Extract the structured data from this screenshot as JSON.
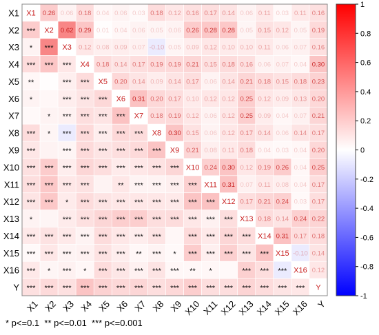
{
  "chart_data": {
    "type": "heatmap",
    "variables": [
      "X1",
      "X2",
      "X3",
      "X4",
      "X5",
      "X6",
      "X7",
      "X8",
      "X9",
      "X10",
      "X11",
      "X12",
      "X13",
      "X14",
      "X15",
      "X16",
      "Y"
    ],
    "upper_values": [
      [
        null,
        "0.26",
        "0.06",
        "0.18",
        "0.04",
        "0.06",
        "0.03",
        "0.18",
        "0.12",
        "0.16",
        "0.17",
        "0.14",
        "0.06",
        "0.11",
        "0.03",
        "0.11",
        "0.16"
      ],
      [
        null,
        null,
        "0.62",
        "0.29",
        "0.01",
        "0.04",
        "0.06",
        "0.05",
        "0.06",
        "0.26",
        "0.28",
        "0.28",
        "0.05",
        "0.15",
        "0.12",
        "0.05",
        "0.19"
      ],
      [
        null,
        null,
        null,
        "0.12",
        "0.08",
        "0.09",
        "0.07",
        "-0.10",
        "0.05",
        "0.09",
        "0.12",
        "0.10",
        "0.10",
        "0.11",
        "0.06",
        "0.07",
        "0.16"
      ],
      [
        null,
        null,
        null,
        null,
        "0.18",
        "0.14",
        "0.17",
        "0.19",
        "0.19",
        "0.21",
        "0.15",
        "0.18",
        "0.16",
        "0.06",
        "0.07",
        "0.04",
        "0.30"
      ],
      [
        null,
        null,
        null,
        null,
        null,
        "0.20",
        "0.14",
        "0.09",
        "0.14",
        "0.17",
        "0.06",
        "0.14",
        "0.21",
        "0.18",
        "0.15",
        "0.18",
        "0.23"
      ],
      [
        null,
        null,
        null,
        null,
        null,
        null,
        "0.31",
        "0.20",
        "0.17",
        "0.10",
        "0.12",
        "0.12",
        "0.25",
        "0.12",
        "0.09",
        "0.13",
        "0.20"
      ],
      [
        null,
        null,
        null,
        null,
        null,
        null,
        null,
        "0.18",
        "0.19",
        "0.12",
        "0.06",
        "0.12",
        "0.25",
        "0.09",
        "0.04",
        "0.07",
        "0.21"
      ],
      [
        null,
        null,
        null,
        null,
        null,
        null,
        null,
        null,
        "0.30",
        "0.15",
        "0.06",
        "0.12",
        "0.17",
        "0.14",
        "0.06",
        "0.14",
        "0.17"
      ],
      [
        null,
        null,
        null,
        null,
        null,
        null,
        null,
        null,
        null,
        "0.21",
        "0.08",
        "0.11",
        "0.18",
        "0.04",
        "0.03",
        "0.04",
        "0.20"
      ],
      [
        null,
        null,
        null,
        null,
        null,
        null,
        null,
        null,
        null,
        null,
        "0.24",
        "0.30",
        "0.12",
        "0.19",
        "0.26",
        "0.04",
        "0.25"
      ],
      [
        null,
        null,
        null,
        null,
        null,
        null,
        null,
        null,
        null,
        null,
        null,
        "0.31",
        "0.07",
        "0.11",
        "0.08",
        "0.04",
        "0.17"
      ],
      [
        null,
        null,
        null,
        null,
        null,
        null,
        null,
        null,
        null,
        null,
        null,
        null,
        "0.17",
        "0.21",
        "0.24",
        "0.03",
        "0.17"
      ],
      [
        null,
        null,
        null,
        null,
        null,
        null,
        null,
        null,
        null,
        null,
        null,
        null,
        null,
        "0.18",
        "0.14",
        "0.24",
        "0.22"
      ],
      [
        null,
        null,
        null,
        null,
        null,
        null,
        null,
        null,
        null,
        null,
        null,
        null,
        null,
        null,
        "0.31",
        "0.17",
        "0.18"
      ],
      [
        null,
        null,
        null,
        null,
        null,
        null,
        null,
        null,
        null,
        null,
        null,
        null,
        null,
        null,
        null,
        "-0.10",
        "0.14"
      ],
      [
        null,
        null,
        null,
        null,
        null,
        null,
        null,
        null,
        null,
        null,
        null,
        null,
        null,
        null,
        null,
        null,
        "0.12"
      ],
      [
        null,
        null,
        null,
        null,
        null,
        null,
        null,
        null,
        null,
        null,
        null,
        null,
        null,
        null,
        null,
        null,
        null
      ]
    ],
    "lower_stars": [
      [],
      [
        "***"
      ],
      [
        "*",
        "***"
      ],
      [
        "***",
        "***",
        "***"
      ],
      [
        "**",
        "",
        "***",
        "***"
      ],
      [
        "*",
        "",
        "***",
        "***",
        "***"
      ],
      [
        "",
        "*",
        "***",
        "***",
        "***",
        "***"
      ],
      [
        "***",
        "*",
        "***",
        "***",
        "***",
        "***",
        "***"
      ],
      [
        "***",
        "",
        "***",
        "***",
        "***",
        "***",
        "***",
        "***"
      ],
      [
        "***",
        "***",
        "***",
        "***",
        "***",
        "***",
        "***",
        "***",
        "***"
      ],
      [
        "***",
        "***",
        "***",
        "***",
        "",
        "**",
        "***",
        "***",
        "***",
        "***"
      ],
      [
        "***",
        "***",
        "*",
        "***",
        "***",
        "***",
        "***",
        "***",
        "***",
        "***",
        "***"
      ],
      [
        "*",
        "",
        "***",
        "***",
        "***",
        "***",
        "***",
        "***",
        "***",
        "***",
        "***",
        "***"
      ],
      [
        "***",
        "***",
        "***",
        "***",
        "***",
        "***",
        "***",
        "***",
        "",
        "***",
        "***",
        "***",
        "***"
      ],
      [
        "***",
        "***",
        "***",
        "***",
        "***",
        "***",
        "**",
        "***",
        "*",
        "***",
        "***",
        "***",
        "***",
        "***"
      ],
      [
        "***",
        "*",
        "***",
        "*",
        "***",
        "***",
        "***",
        "***",
        "***",
        "**",
        "*",
        "",
        "***",
        "***",
        "***"
      ],
      [
        "***",
        "***",
        "***",
        "***",
        "***",
        "***",
        "***",
        "***",
        "***",
        "***",
        "***",
        "***",
        "***",
        "***",
        "***",
        "***"
      ]
    ],
    "colorbar": {
      "range": [
        -1,
        1
      ],
      "ticks": [
        "1",
        "0.8",
        "0.6",
        "0.4",
        "0.2",
        "0",
        "-0.2",
        "-0.4",
        "-0.6",
        "-0.8",
        "-1"
      ]
    },
    "colors": {
      "positive": "#f22a2a",
      "negative": "#2a2af2",
      "neutral": "#ffffff",
      "label": "#c81e1e"
    },
    "legend_text": "* p<=0.1  ** p<=0.01  *** p<=0.001"
  }
}
